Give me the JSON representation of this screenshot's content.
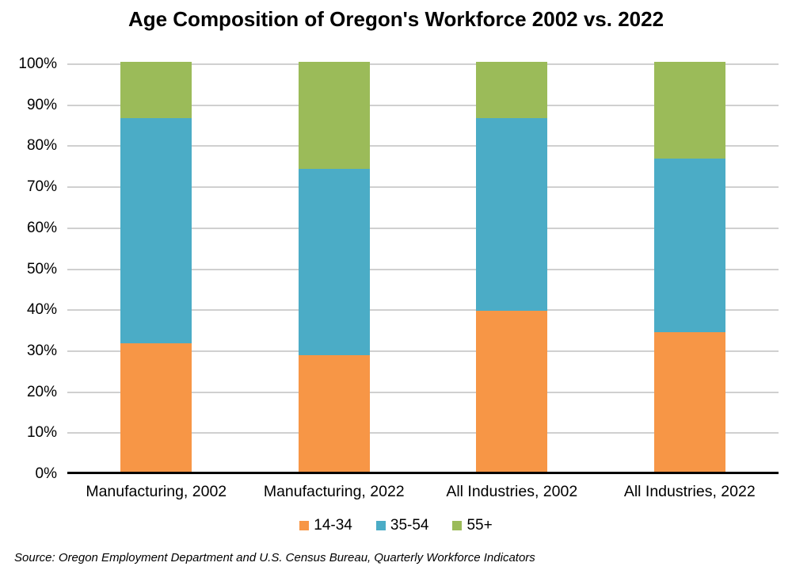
{
  "chart_data": {
    "type": "bar",
    "subtype": "stacked-percent-column",
    "title": "Age Composition of Oregon's Workforce 2002 vs. 2022",
    "categories": [
      "Manufacturing, 2002",
      "Manufacturing, 2022",
      "All Industries, 2002",
      "All Industries, 2022"
    ],
    "series": [
      {
        "name": "14-34",
        "color": "#F79646",
        "values": [
          31.4,
          28.5,
          39.3,
          34.1
        ]
      },
      {
        "name": "35-54",
        "color": "#4BACC6",
        "values": [
          54.9,
          45.4,
          47.0,
          42.4
        ]
      },
      {
        "name": "55+",
        "color": "#9BBB59",
        "values": [
          13.7,
          26.1,
          13.7,
          23.5
        ]
      }
    ],
    "xlabel": "",
    "ylabel": "",
    "ylim": [
      0,
      100
    ],
    "y_ticks": [
      100,
      90,
      80,
      70,
      60,
      50,
      40,
      30,
      20,
      10,
      0
    ],
    "y_tick_suffix": "%",
    "grid": true,
    "gridline_color": "#d0d0d0",
    "axis_line_color": "#000000",
    "legend_position": "bottom"
  },
  "source_note": "Source: Oregon Employment Department and U.S. Census Bureau, Quarterly Workforce Indicators"
}
